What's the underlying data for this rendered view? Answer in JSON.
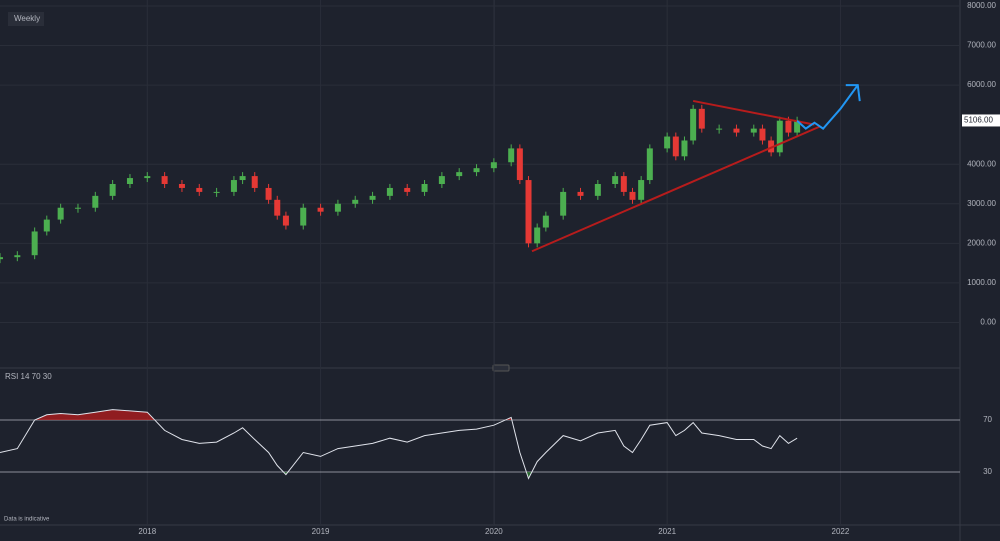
{
  "chart_data": {
    "type": "candlestick",
    "interval_label": "Weekly",
    "indicator_label": "RSI 14 70 30",
    "footnote": "Data is indicative",
    "x": [
      2017.15,
      2017.25,
      2017.35,
      2017.42,
      2017.5,
      2017.6,
      2017.7,
      2017.8,
      2017.9,
      2018.0,
      2018.1,
      2018.2,
      2018.3,
      2018.4,
      2018.5,
      2018.55,
      2018.62,
      2018.7,
      2018.75,
      2018.8,
      2018.9,
      2019.0,
      2019.1,
      2019.2,
      2019.3,
      2019.4,
      2019.5,
      2019.6,
      2019.7,
      2019.8,
      2019.9,
      2020.0,
      2020.1,
      2020.15,
      2020.2,
      2020.25,
      2020.3,
      2020.4,
      2020.5,
      2020.6,
      2020.7,
      2020.75,
      2020.8,
      2020.85,
      2020.9,
      2021.0,
      2021.05,
      2021.1,
      2021.15,
      2021.2,
      2021.3,
      2021.4,
      2021.5,
      2021.55,
      2021.6,
      2021.65,
      2021.7,
      2021.75
    ],
    "open": [
      1600,
      1650,
      1700,
      2300,
      2600,
      2900,
      2900,
      3200,
      3500,
      3650,
      3700,
      3500,
      3400,
      3300,
      3300,
      3600,
      3700,
      3400,
      3100,
      2700,
      2450,
      2900,
      2800,
      3000,
      3100,
      3200,
      3400,
      3300,
      3500,
      3700,
      3800,
      3900,
      4050,
      4400,
      3600,
      2000,
      2400,
      2700,
      3300,
      3200,
      3500,
      3700,
      3300,
      3100,
      3600,
      4400,
      4700,
      4200,
      4600,
      5400,
      4900,
      4900,
      4800,
      4900,
      4600,
      4300,
      5100,
      4800
    ],
    "close": [
      1650,
      1700,
      2300,
      2600,
      2900,
      2900,
      3200,
      3500,
      3650,
      3700,
      3500,
      3400,
      3300,
      3300,
      3600,
      3700,
      3400,
      3100,
      2700,
      2450,
      2900,
      2800,
      3000,
      3100,
      3200,
      3400,
      3300,
      3500,
      3700,
      3800,
      3900,
      4050,
      4400,
      3600,
      2000,
      2400,
      2700,
      3300,
      3200,
      3500,
      3700,
      3300,
      3100,
      3600,
      4400,
      4700,
      4200,
      4600,
      5400,
      4900,
      4900,
      4800,
      4900,
      4600,
      4300,
      5100,
      4800,
      5100
    ],
    "up_color": "#4caf50",
    "down_color": "#e53935",
    "rsi": [
      45,
      48,
      70,
      74,
      75,
      74,
      76,
      78,
      77,
      76,
      62,
      55,
      52,
      53,
      60,
      64,
      55,
      45,
      35,
      28,
      45,
      42,
      48,
      50,
      52,
      56,
      53,
      58,
      60,
      62,
      63,
      66,
      72,
      45,
      25,
      38,
      45,
      58,
      54,
      60,
      62,
      50,
      45,
      55,
      66,
      68,
      58,
      62,
      68,
      60,
      58,
      55,
      55,
      50,
      48,
      58,
      52,
      56
    ],
    "xlim": [
      2017.15,
      2022.69
    ],
    "xticks": [
      2018,
      2019,
      2020,
      2021,
      2022
    ],
    "ylim": [
      -1000,
      8000
    ],
    "yticks": [
      {
        "value": 8000,
        "label": "8000.00"
      },
      {
        "value": 7000,
        "label": "7000.00"
      },
      {
        "value": 6000,
        "label": "6000.00"
      },
      {
        "value": 4000,
        "label": "4000.00"
      },
      {
        "value": 3000,
        "label": "3000.00"
      },
      {
        "value": 2000,
        "label": "2000.00"
      },
      {
        "value": 1000,
        "label": "1000.00"
      },
      {
        "value": 0,
        "label": "0.00"
      }
    ],
    "last_price": {
      "value": 5106,
      "label": "5106.00"
    },
    "rsi_ylim": [
      0,
      100
    ],
    "rsi_yticks": [
      70,
      30
    ],
    "trendlines": [
      {
        "color": "#b71c1c",
        "x": [
          2021.15,
          2021.85
        ],
        "y": [
          5600,
          5000
        ]
      },
      {
        "color": "#b71c1c",
        "x": [
          2020.22,
          2021.88
        ],
        "y": [
          1800,
          4950
        ]
      }
    ],
    "projection": {
      "color": "#2196f3",
      "x": [
        2021.75,
        2021.8,
        2021.85,
        2021.9,
        2022.0,
        2022.1
      ],
      "y": [
        5100,
        4900,
        5050,
        4900,
        5400,
        6000
      ]
    },
    "grid": true
  }
}
